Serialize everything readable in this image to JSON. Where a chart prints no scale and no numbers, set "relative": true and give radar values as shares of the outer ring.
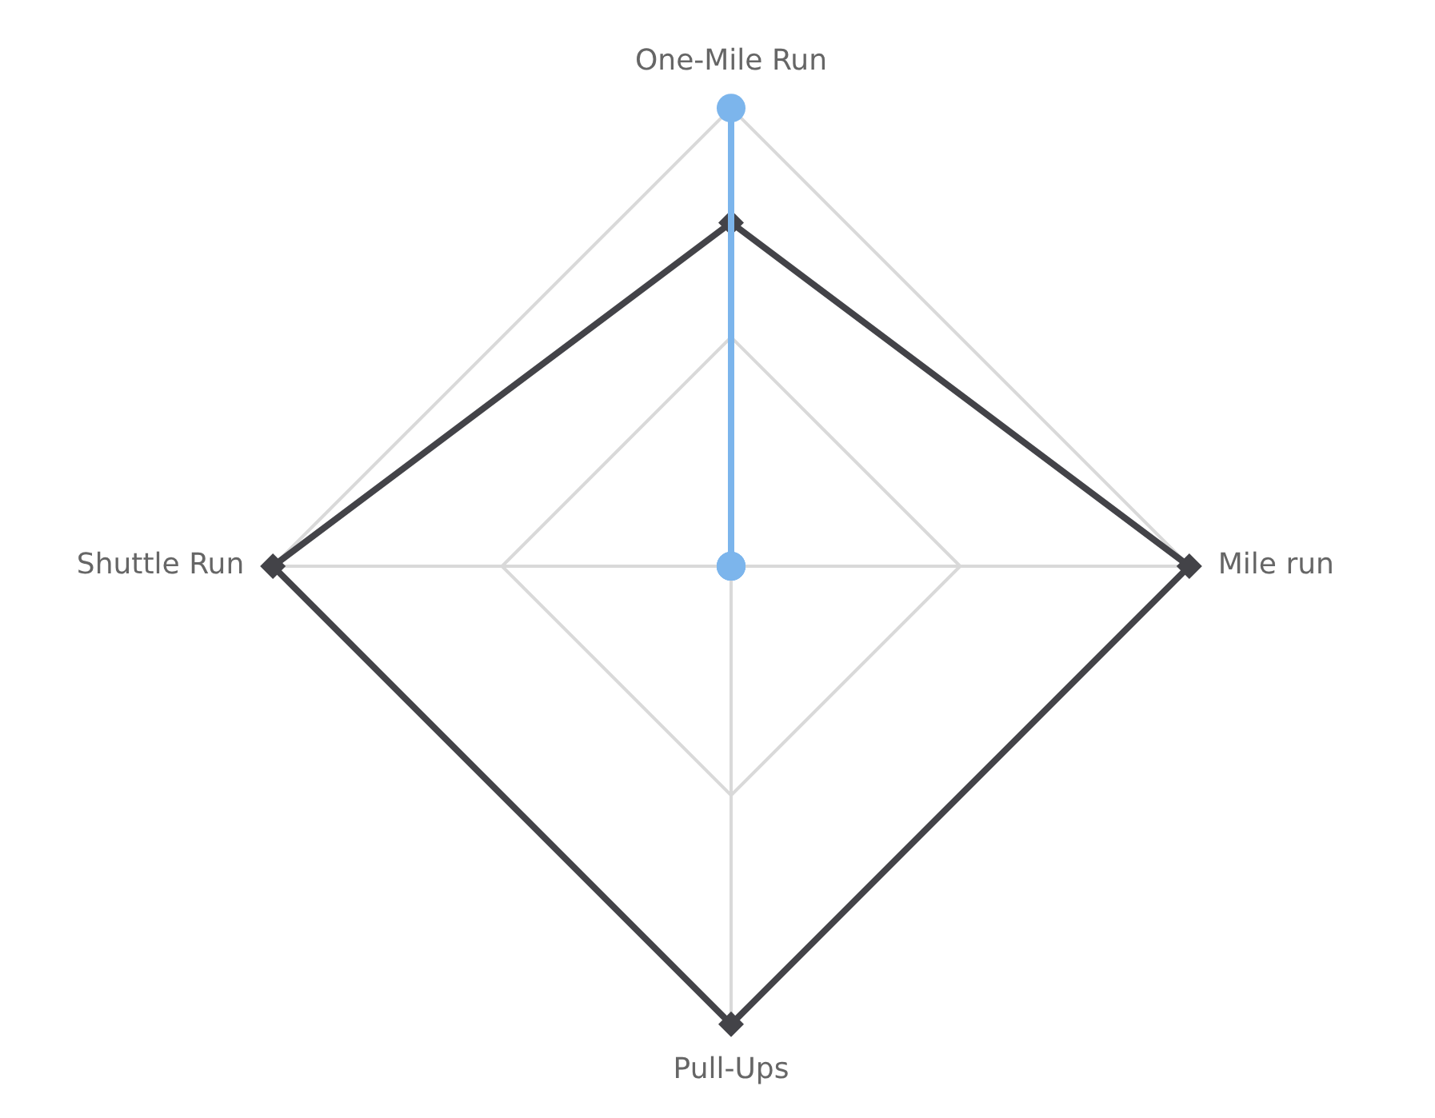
{
  "chart_data": {
    "type": "radar",
    "relative": true,
    "grid": true,
    "legend": false,
    "line_style": "solid",
    "categories": [
      "One-Mile Run",
      "Mile run",
      "Pull-Ups",
      "Shuttle Run"
    ],
    "series": [
      {
        "color": "#7cb5ec",
        "marker": "circle",
        "values": [
          1,
          0,
          0,
          0
        ]
      },
      {
        "color": "#434348",
        "marker": "diamond",
        "values": [
          0.75,
          1,
          1,
          1
        ]
      }
    ]
  }
}
